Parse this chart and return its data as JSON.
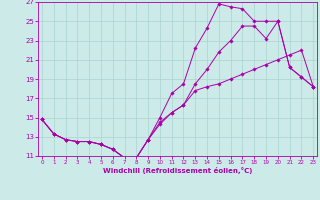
{
  "xlabel": "Windchill (Refroidissement éolien,°C)",
  "bg_color": "#cceae7",
  "grid_color": "#aad4d1",
  "line_color": "#aa00aa",
  "xlim": [
    0,
    23
  ],
  "ylim": [
    11,
    27
  ],
  "xticks": [
    0,
    1,
    2,
    3,
    4,
    5,
    6,
    7,
    8,
    9,
    10,
    11,
    12,
    13,
    14,
    15,
    16,
    17,
    18,
    19,
    20,
    21,
    22,
    23
  ],
  "yticks": [
    11,
    13,
    15,
    17,
    19,
    21,
    23,
    25,
    27
  ],
  "series1_x": [
    0,
    1,
    2,
    3,
    4,
    5,
    6,
    7,
    8,
    9,
    10,
    11,
    12,
    13,
    14,
    15,
    16,
    17,
    18,
    19,
    20,
    21,
    22,
    23
  ],
  "series1_y": [
    14.8,
    13.3,
    12.7,
    12.5,
    12.5,
    12.2,
    11.7,
    10.8,
    10.8,
    12.7,
    14.5,
    15.5,
    16.3,
    17.8,
    18.2,
    18.5,
    19.0,
    19.5,
    20.0,
    20.5,
    21.0,
    21.5,
    22.0,
    18.2
  ],
  "series2_x": [
    0,
    1,
    2,
    3,
    4,
    5,
    6,
    7,
    8,
    9,
    10,
    11,
    12,
    13,
    14,
    15,
    16,
    17,
    18,
    19,
    20,
    21,
    22,
    23
  ],
  "series2_y": [
    14.8,
    13.3,
    12.7,
    12.5,
    12.5,
    12.2,
    11.7,
    10.8,
    10.8,
    12.7,
    15.0,
    17.5,
    18.5,
    22.2,
    24.3,
    26.8,
    26.5,
    26.3,
    25.0,
    25.0,
    25.0,
    20.2,
    19.2,
    18.2
  ],
  "series3_x": [
    0,
    1,
    2,
    3,
    4,
    5,
    6,
    7,
    8,
    9,
    10,
    11,
    12,
    13,
    14,
    15,
    16,
    17,
    18,
    19,
    20,
    21,
    22,
    23
  ],
  "series3_y": [
    14.8,
    13.3,
    12.7,
    12.5,
    12.5,
    12.2,
    11.7,
    10.8,
    10.8,
    12.7,
    14.3,
    15.5,
    16.3,
    18.5,
    20.0,
    21.8,
    23.0,
    24.5,
    24.5,
    23.2,
    25.0,
    20.2,
    19.2,
    18.2
  ]
}
